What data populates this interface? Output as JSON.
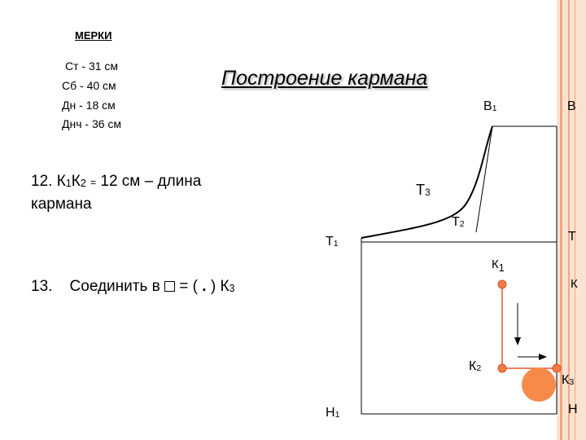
{
  "measures": {
    "title": "МЕРКИ",
    "items": [
      "Ст -    31 см",
      "Сб -   40 см",
      "Дн -   18 см",
      "Днч - 36 см"
    ]
  },
  "title": "Построение кармана",
  "step12": {
    "prefix": "12. К",
    "sub1": "1",
    "mid": "К",
    "sub2": "2",
    "eq": "=",
    "rest": " 12 см – длина",
    "line2": "кармана"
  },
  "step13": {
    "text_before": "13.    Соединить в ",
    "text_after": " = ( ",
    "dot": ".",
    "close": " ) К",
    "sub": "3"
  },
  "diagram": {
    "B1": {
      "base": "В",
      "sub": "1"
    },
    "B": "В",
    "T1": {
      "base": "Т",
      "sub": "1"
    },
    "T": "Т",
    "T2": {
      "base": "Т",
      "sub": "2"
    },
    "T3": {
      "base": "Т",
      "sub": "3"
    },
    "K1": {
      "base": "К",
      "sub": "1"
    },
    "K": "К",
    "K2": {
      "base": "К",
      "sub": "2"
    },
    "K3": {
      "base": "К",
      "sub": "3"
    },
    "H1": {
      "base": "Н",
      "sub": "1"
    },
    "H": "Н"
  },
  "colors": {
    "point": "#f27a45",
    "point_stroke": "#d9541e",
    "pocket_line": "#e8562a",
    "big_circle": "#f58a4b",
    "side_band": "#fbe3d4",
    "side_line": "#f0a77f"
  }
}
